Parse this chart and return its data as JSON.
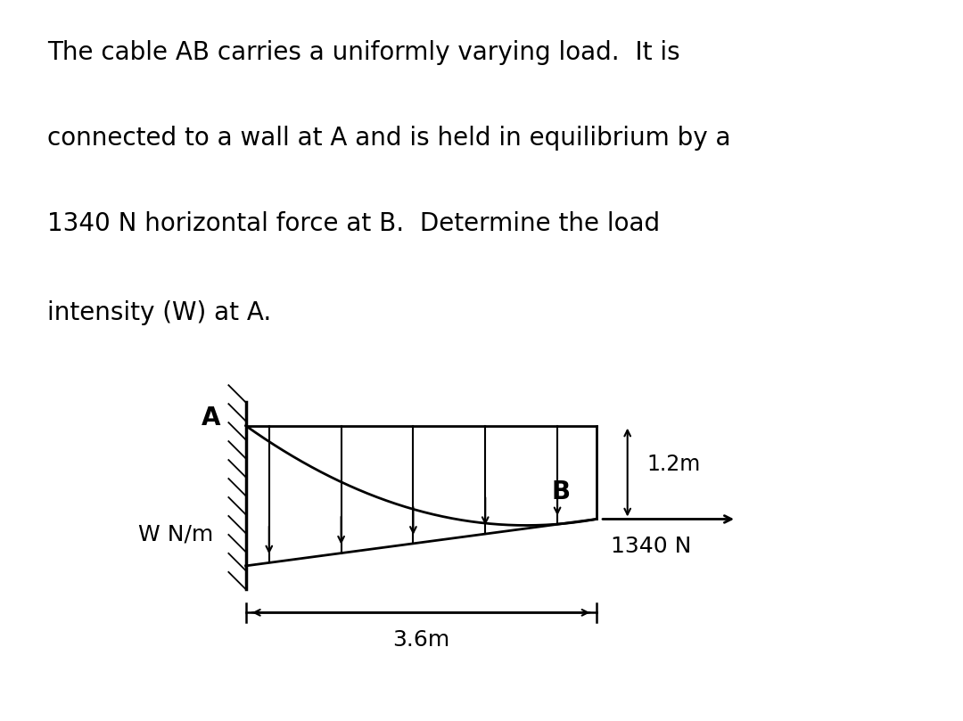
{
  "bg_color": "#ffffff",
  "text_color": "#000000",
  "fig_width": 10.8,
  "fig_height": 8.09,
  "title_lines": [
    "The cable AB carries a uniformly varying load.  It is",
    "connected to a wall at A and is held in equilibrium by a",
    "1340 N horizontal force at B.  Determine the load",
    "intensity (W) at A."
  ],
  "label_A": "A",
  "label_B": "B",
  "label_W": "W N/m",
  "label_1340": "1340 N",
  "label_12m": "1.2m",
  "label_36m": "3.6m",
  "diagram_color": "#000000",
  "title_fontsize": 20,
  "diagram_fontsize": 18
}
